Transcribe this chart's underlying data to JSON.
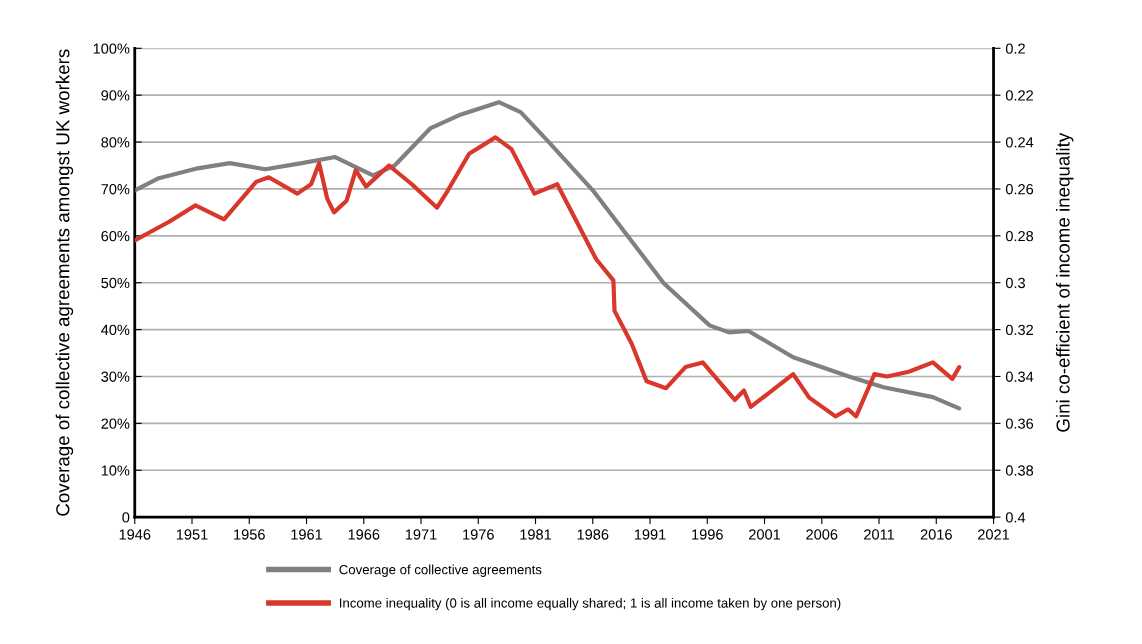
{
  "chart_data": {
    "type": "line",
    "ylabel": "Coverage of collective agreements amongst UK workers",
    "y2label": "Gini co-efficient of income inequality",
    "xlim": [
      1946,
      2021
    ],
    "xticks": [
      1946,
      1951,
      1956,
      1961,
      1966,
      1971,
      1976,
      1981,
      1986,
      1991,
      1996,
      2001,
      2006,
      2011,
      2016,
      2021
    ],
    "ylim": [
      0,
      100
    ],
    "yticks": [
      {
        "value": 0,
        "label": "0"
      },
      {
        "value": 10,
        "label": "10%"
      },
      {
        "value": 20,
        "label": "20%"
      },
      {
        "value": 30,
        "label": "30%"
      },
      {
        "value": 40,
        "label": "40%"
      },
      {
        "value": 50,
        "label": "50%"
      },
      {
        "value": 60,
        "label": "60%"
      },
      {
        "value": 70,
        "label": "70%"
      },
      {
        "value": 80,
        "label": "80%"
      },
      {
        "value": 90,
        "label": "90%"
      },
      {
        "value": 100,
        "label": "100%"
      }
    ],
    "y2lim": [
      0.4,
      0.2
    ],
    "y2ticks": [
      0.2,
      0.22,
      0.24,
      0.26,
      0.28,
      0.3,
      0.32,
      0.34,
      0.36,
      0.38,
      0.4
    ],
    "grid": "y",
    "legend": "bottom",
    "marker": "none",
    "line_style": "solid",
    "series": [
      {
        "name": "Coverage of collective agreements",
        "color": "#808080",
        "x": [
          1946,
          1948.1,
          1951.5,
          1954.3,
          1957.4,
          1960.6,
          1963.5,
          1966.8,
          1968.7,
          1971.8,
          1974.3,
          1977.8,
          1979.7,
          1982.0,
          1986.0,
          1992.2,
          1996.2,
          1997.9,
          1999.6,
          2003.5,
          2008.5,
          2011.4,
          2015.7,
          2018.0
        ],
        "values": [
          69.7,
          72.3,
          74.4,
          75.5,
          74.2,
          75.5,
          76.8,
          72.9,
          75,
          82.9,
          85.7,
          88.5,
          86.4,
          80.4,
          69.7,
          49.9,
          40.9,
          39.4,
          39.7,
          34.1,
          29.9,
          27.7,
          25.6,
          23.2
        ]
      },
      {
        "name": "Income inequality (0 is all income equally shared; 1 is all income taken by one person)",
        "color": "#d9372b",
        "axis": "y2",
        "x": [
          1946,
          1949.0,
          1951.3,
          1953.8,
          1956.6,
          1957.7,
          1960.2,
          1961.4,
          1962.1,
          1962.8,
          1963.4,
          1964.5,
          1965.3,
          1966.2,
          1968.2,
          1970.2,
          1972.4,
          1973.3,
          1975.2,
          1977.5,
          1978.9,
          1980.9,
          1982.9,
          1986.3,
          1987.8,
          1987.9,
          1989.4,
          1990.7,
          1992.4,
          1994.1,
          1995.6,
          1998.4,
          1999.2,
          1999.8,
          2003.5,
          2004.9,
          2007.2,
          2008.3,
          2009.0,
          2010.6,
          2011.7,
          2013.6,
          2015.7,
          2017.4,
          2018.0
        ],
        "values": [
          0.282,
          0.274,
          0.267,
          0.273,
          0.257,
          0.255,
          0.262,
          0.258,
          0.249,
          0.264,
          0.27,
          0.265,
          0.252,
          0.259,
          0.25,
          0.258,
          0.268,
          0.261,
          0.245,
          0.238,
          0.243,
          0.262,
          0.258,
          0.29,
          0.299,
          0.312,
          0.326,
          0.342,
          0.345,
          0.336,
          0.334,
          0.35,
          0.346,
          0.353,
          0.339,
          0.349,
          0.357,
          0.354,
          0.357,
          0.339,
          0.34,
          0.338,
          0.334,
          0.341,
          0.336
        ]
      }
    ]
  }
}
